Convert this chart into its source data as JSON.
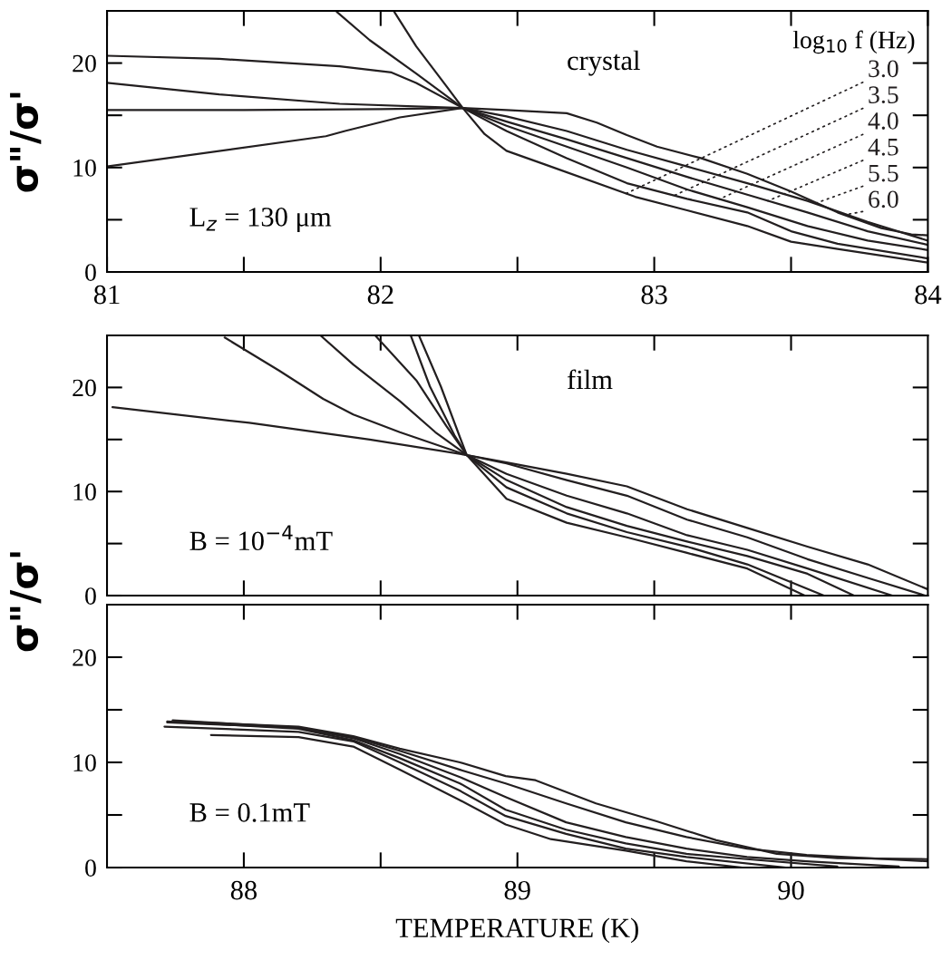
{
  "chart_data": [
    {
      "type": "line",
      "ylabel": "σ\"/σ'",
      "legend_title": "log$_{10}$ f (Hz)",
      "annotations": [
        "crystal",
        "L$_{z}$ = 130 μm"
      ],
      "xlim": [
        81,
        84
      ],
      "xticks": [
        81,
        82,
        83,
        84
      ],
      "ylim": [
        0,
        25
      ],
      "yticks": [
        0,
        10,
        20
      ],
      "series": [
        {
          "name": "3.0",
          "color": "#231f20",
          "x": [
            82.05,
            82.13,
            82.24,
            82.3,
            82.38,
            82.46,
            82.6,
            82.93,
            83.12,
            83.34,
            83.5,
            83.67,
            84.0
          ],
          "values": [
            24.9,
            21.6,
            17.8,
            15.7,
            13.2,
            11.6,
            10.3,
            7.2,
            5.9,
            4.4,
            2.9,
            2.2,
            0.9
          ]
        },
        {
          "name": "3.5",
          "color": "#231f20",
          "x": [
            81.84,
            81.96,
            82.13,
            82.3,
            82.46,
            82.68,
            82.9,
            83.12,
            83.34,
            83.5,
            83.67,
            84.0
          ],
          "values": [
            24.9,
            22.2,
            19.0,
            15.7,
            13.5,
            10.9,
            8.5,
            7.0,
            5.7,
            3.9,
            2.7,
            1.3
          ]
        },
        {
          "name": "4.0",
          "color": "#231f20",
          "x": [
            81.0,
            81.41,
            81.85,
            82.04,
            82.13,
            82.3,
            82.46,
            82.68,
            82.9,
            83.12,
            83.34,
            83.56,
            83.78,
            84.0
          ],
          "values": [
            20.7,
            20.4,
            19.7,
            19.1,
            18.1,
            15.7,
            14.0,
            12.0,
            10.0,
            7.9,
            6.2,
            4.4,
            3.0,
            2.1
          ]
        },
        {
          "name": "4.5",
          "color": "#231f20",
          "x": [
            81.0,
            81.41,
            81.85,
            82.3,
            82.46,
            82.68,
            82.9,
            83.12,
            83.34,
            83.56,
            83.78,
            84.0
          ],
          "values": [
            18.1,
            17.0,
            16.1,
            15.7,
            14.4,
            12.7,
            10.9,
            9.1,
            7.4,
            5.7,
            3.9,
            2.6
          ]
        },
        {
          "name": "5.5",
          "color": "#231f20",
          "x": [
            81.0,
            81.5,
            82.0,
            82.3,
            82.46,
            82.68,
            82.9,
            83.12,
            83.34,
            83.56,
            83.78,
            84.0
          ],
          "values": [
            15.5,
            15.5,
            15.6,
            15.7,
            14.9,
            13.5,
            11.7,
            10.1,
            8.5,
            6.8,
            4.8,
            3.0
          ]
        },
        {
          "name": "6.0",
          "color": "#231f20",
          "x": [
            81.0,
            81.8,
            81.87,
            82.07,
            82.3,
            82.46,
            82.68,
            82.79,
            82.9,
            83.01,
            83.17,
            83.34,
            83.5,
            83.67,
            83.83,
            83.94,
            84.0
          ],
          "values": [
            10.1,
            13.0,
            13.5,
            14.8,
            15.7,
            15.5,
            15.2,
            14.3,
            13.1,
            12.0,
            10.9,
            9.4,
            7.7,
            5.7,
            4.2,
            3.6,
            3.5
          ]
        }
      ]
    },
    {
      "type": "line",
      "ylabel": "σ\"/σ'",
      "annotations": [
        "film",
        "B = 10$^{−4}$mT"
      ],
      "tick_labels": "y",
      "xlim": [
        87.5,
        90.5
      ],
      "xticks": [
        88,
        89,
        90
      ],
      "ylim": [
        0,
        25
      ],
      "yticks": [
        0,
        10,
        20
      ],
      "series": [
        {
          "color": "#231f20",
          "x": [
            88.64,
            88.72,
            88.79,
            88.815,
            88.96,
            89.18,
            89.4,
            89.62,
            89.84,
            90.05
          ],
          "values": [
            25.0,
            20.1,
            15.2,
            13.5,
            9.3,
            7.0,
            5.6,
            4.1,
            2.6,
            0
          ]
        },
        {
          "color": "#231f20",
          "x": [
            88.61,
            88.68,
            88.77,
            88.815,
            88.96,
            89.18,
            89.4,
            89.62,
            89.84,
            90.12
          ],
          "values": [
            25.0,
            20.1,
            15.4,
            13.5,
            10.4,
            7.9,
            6.1,
            4.7,
            3.0,
            0
          ]
        },
        {
          "color": "#231f20",
          "x": [
            88.48,
            88.63,
            88.74,
            88.815,
            88.96,
            89.18,
            89.4,
            89.62,
            89.84,
            90.06,
            90.23
          ],
          "values": [
            25.0,
            20.7,
            16.3,
            13.5,
            11.1,
            8.5,
            6.7,
            5.2,
            3.8,
            2.1,
            0
          ]
        },
        {
          "color": "#231f20",
          "x": [
            88.28,
            88.4,
            88.57,
            88.7,
            88.815,
            88.96,
            89.18,
            89.4,
            89.62,
            89.84,
            90.06,
            90.37
          ],
          "values": [
            25.0,
            22.2,
            18.7,
            15.7,
            13.5,
            11.7,
            9.6,
            7.9,
            5.8,
            4.4,
            2.6,
            0
          ]
        },
        {
          "color": "#231f20",
          "x": [
            87.93,
            88.13,
            88.29,
            88.4,
            88.57,
            88.815,
            88.96,
            89.18,
            89.4,
            89.62,
            89.84,
            90.06,
            90.28,
            90.49
          ],
          "values": [
            24.8,
            21.6,
            18.9,
            17.4,
            15.7,
            13.5,
            12.7,
            11.1,
            9.6,
            7.3,
            5.6,
            3.5,
            1.7,
            0
          ]
        },
        {
          "color": "#231f20",
          "x": [
            87.52,
            88.02,
            88.46,
            88.815,
            88.96,
            89.18,
            89.4,
            89.62,
            89.84,
            90.06,
            90.28,
            90.5
          ],
          "values": [
            18.1,
            16.6,
            15.0,
            13.5,
            12.8,
            11.7,
            10.5,
            8.3,
            6.5,
            4.7,
            3.0,
            0.6
          ]
        }
      ]
    },
    {
      "type": "line",
      "xlabel": "TEMPERATURE (K)",
      "annotations": [
        "B = 0.1mT"
      ],
      "xlim": [
        87.5,
        90.5
      ],
      "xticks": [
        88,
        89,
        90
      ],
      "ylim": [
        0,
        25
      ],
      "yticks": [
        0,
        10,
        20
      ],
      "series": [
        {
          "color": "#231f20",
          "x": [
            87.88,
            88.2,
            88.4,
            88.57,
            88.79,
            88.957,
            89.122,
            89.396,
            89.618,
            89.822
          ],
          "values": [
            12.6,
            12.4,
            11.5,
            9.3,
            6.4,
            4.1,
            2.7,
            1.6,
            0.6,
            0
          ]
        },
        {
          "color": "#231f20",
          "x": [
            87.71,
            88.2,
            88.4,
            88.57,
            88.79,
            88.957,
            89.178,
            89.396,
            89.618,
            89.981
          ],
          "values": [
            13.4,
            12.9,
            12.0,
            10.0,
            7.3,
            4.9,
            3.2,
            1.8,
            1.0,
            0
          ]
        },
        {
          "color": "#231f20",
          "x": [
            87.72,
            88.2,
            88.4,
            88.57,
            88.79,
            88.957,
            89.178,
            89.396,
            89.618,
            89.839,
            90.169
          ],
          "values": [
            13.9,
            13.2,
            12.1,
            10.4,
            8.0,
            5.5,
            3.6,
            2.3,
            1.3,
            0.8,
            0.1
          ]
        },
        {
          "color": "#231f20",
          "x": [
            87.74,
            88.2,
            88.4,
            88.57,
            88.79,
            88.957,
            89.178,
            89.396,
            89.618,
            89.839,
            90.057,
            90.394
          ],
          "values": [
            14.0,
            13.3,
            12.3,
            10.8,
            8.6,
            6.7,
            4.3,
            2.9,
            1.8,
            1.0,
            0.6,
            0.1
          ]
        },
        {
          "color": "#231f20",
          "x": [
            87.72,
            88.2,
            88.4,
            88.57,
            88.79,
            88.957,
            89.178,
            89.396,
            89.618,
            89.839,
            90.057,
            90.5
          ],
          "values": [
            13.8,
            13.3,
            12.4,
            11.1,
            9.3,
            8.0,
            6.1,
            4.3,
            2.9,
            1.8,
            1.2,
            0.6
          ]
        },
        {
          "color": "#231f20",
          "x": [
            87.75,
            88.2,
            88.4,
            88.57,
            88.79,
            88.957,
            89.066,
            89.287,
            89.509,
            89.727,
            89.948,
            90.169,
            90.5
          ],
          "values": [
            13.9,
            13.4,
            12.5,
            11.3,
            10.0,
            8.7,
            8.3,
            6.1,
            4.4,
            2.6,
            1.3,
            0.9,
            0.8
          ]
        }
      ]
    }
  ]
}
